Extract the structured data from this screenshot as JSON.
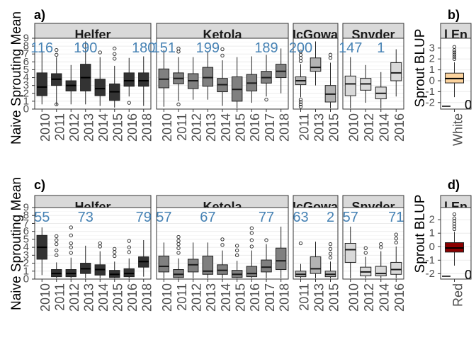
{
  "chart_data": [
    {
      "type": "boxplot",
      "panel_label": "a)",
      "ylabel": "Naive Sprouting Mean",
      "yticks": [
        0,
        1,
        2,
        3,
        4,
        5,
        6,
        7,
        8,
        9
      ],
      "ylim": [
        0,
        9
      ],
      "fill": "#333333",
      "facets": [
        {
          "name": "Helfer",
          "groups": [
            {
              "x": "2010",
              "min": 0.6,
              "q1": 1.7,
              "median": 2.8,
              "q3": 4.6,
              "max": 7.4,
              "outliers": [],
              "n": "116"
            },
            {
              "x": "2011",
              "min": 0.5,
              "q1": 3.0,
              "median": 3.8,
              "q3": 4.5,
              "max": 6.6,
              "outliers": [
                0.6,
                6.9,
                7.5
              ],
              "n": ""
            },
            {
              "x": "2012",
              "min": 0.6,
              "q1": 2.3,
              "median": 3.0,
              "q3": 3.6,
              "max": 5.6,
              "outliers": [],
              "n": ""
            },
            {
              "x": "2013",
              "min": 0.6,
              "q1": 2.3,
              "median": 4.0,
              "q3": 5.7,
              "max": 8.6,
              "outliers": [],
              "n": "190"
            },
            {
              "x": "2014",
              "min": 0.4,
              "q1": 1.7,
              "median": 2.6,
              "q3": 3.8,
              "max": 6.6,
              "outliers": [
                7.2
              ],
              "n": ""
            },
            {
              "x": "2015",
              "min": 0.2,
              "q1": 1.1,
              "median": 2.2,
              "q3": 3.2,
              "max": 5.5,
              "outliers": [
                6.4,
                7.0,
                7.7
              ],
              "n": ""
            },
            {
              "x": "2016",
              "min": 1.6,
              "q1": 2.9,
              "median": 3.6,
              "q3": 4.6,
              "max": 6.5,
              "outliers": [
                0.8
              ],
              "n": ""
            },
            {
              "x": "2018",
              "min": 0.4,
              "q1": 2.9,
              "median": 3.6,
              "q3": 4.6,
              "max": 6.7,
              "outliers": [],
              "n": "180"
            }
          ]
        },
        {
          "name": "Ketola",
          "groups": [
            {
              "x": "2010",
              "min": 0.3,
              "q1": 2.7,
              "median": 3.8,
              "q3": 5.1,
              "max": 7.5,
              "outliers": [],
              "n": "151"
            },
            {
              "x": "2011",
              "min": 1.0,
              "q1": 3.2,
              "median": 3.9,
              "q3": 4.6,
              "max": 6.6,
              "outliers": [
                0.6,
                7.3,
                7.7
              ],
              "n": ""
            },
            {
              "x": "2012",
              "min": 1.2,
              "q1": 2.6,
              "median": 3.6,
              "q3": 4.5,
              "max": 6.6,
              "outliers": [],
              "n": ""
            },
            {
              "x": "2013",
              "min": 1.2,
              "q1": 2.9,
              "median": 4.0,
              "q3": 5.3,
              "max": 7.3,
              "outliers": [],
              "n": "199"
            },
            {
              "x": "2014",
              "min": 0.4,
              "q1": 2.2,
              "median": 3.1,
              "q3": 3.9,
              "max": 6.2,
              "outliers": [
                6.8,
                7.6
              ],
              "n": ""
            },
            {
              "x": "2015",
              "min": 0.1,
              "q1": 1.0,
              "median": 2.5,
              "q3": 4.1,
              "max": 6.6,
              "outliers": [],
              "n": ""
            },
            {
              "x": "2016",
              "min": 0.8,
              "q1": 2.3,
              "median": 3.3,
              "q3": 4.4,
              "max": 6.7,
              "outliers": [],
              "n": ""
            },
            {
              "x": "2017",
              "min": 1.6,
              "q1": 3.3,
              "median": 4.0,
              "q3": 4.8,
              "max": 6.9,
              "outliers": [
                1.2
              ],
              "n": "189"
            },
            {
              "x": "2018",
              "min": 2.0,
              "q1": 4.0,
              "median": 4.8,
              "q3": 5.7,
              "max": 7.7,
              "outliers": [],
              "n": ""
            }
          ]
        },
        {
          "name": "McGowan",
          "groups": [
            {
              "x": "2011",
              "min": 1.5,
              "q1": 3.1,
              "median": 3.6,
              "q3": 4.1,
              "max": 5.7,
              "outliers": [
                0.3,
                0.6,
                0.9,
                1.2,
                6.1,
                6.5,
                6.9,
                7.3
              ],
              "n": "200"
            },
            {
              "x": "2013",
              "min": 3.0,
              "q1": 4.8,
              "median": 5.3,
              "q3": 6.5,
              "max": 8.6,
              "outliers": [],
              "n": ""
            },
            {
              "x": "2015",
              "min": 0.1,
              "q1": 0.9,
              "median": 1.9,
              "q3": 3.0,
              "max": 5.9,
              "outliers": [
                6.5,
                6.9
              ],
              "n": ""
            }
          ]
        },
        {
          "name": "Snyder",
          "groups": [
            {
              "x": "2010",
              "min": 0.1,
              "q1": 1.7,
              "median": 3.2,
              "q3": 4.2,
              "max": 6.6,
              "outliers": [],
              "n": "147"
            },
            {
              "x": "2012",
              "min": 0.8,
              "q1": 2.4,
              "median": 3.2,
              "q3": 3.9,
              "max": 5.6,
              "outliers": [],
              "n": ""
            },
            {
              "x": "2014",
              "min": 0.1,
              "q1": 1.3,
              "median": 2.0,
              "q3": 2.8,
              "max": 4.7,
              "outliers": [],
              "n": "1"
            },
            {
              "x": "2016",
              "min": 1.6,
              "q1": 3.6,
              "median": 4.6,
              "q3": 5.9,
              "max": 7.6,
              "outliers": [],
              "n": ""
            }
          ]
        }
      ]
    },
    {
      "type": "boxplot",
      "panel_label": "b)",
      "ylabel": "Sprout BLUP",
      "strip_label": "l En",
      "yticks": [
        -2,
        -1,
        0,
        1,
        2,
        3
      ],
      "ylim": [
        -2.6,
        3.9
      ],
      "fill": "#fdd49e",
      "outlier_annotation": "0",
      "groups": [
        {
          "x": "White",
          "min": -1.5,
          "q1": -0.2,
          "median": 0.2,
          "q3": 0.7,
          "max": 1.7,
          "outliers": [
            2.0,
            2.2,
            2.4,
            2.6,
            2.8,
            3.1
          ]
        }
      ]
    },
    {
      "type": "boxplot",
      "panel_label": "c)",
      "ylabel": "Naive Sprouting Mean",
      "yticks": [
        0,
        1,
        2,
        3,
        4,
        5,
        6,
        7,
        8,
        9
      ],
      "ylim": [
        0,
        9
      ],
      "fill": "#333333",
      "facets": [
        {
          "name": "Helfer",
          "groups": [
            {
              "x": "2010",
              "min": 0.5,
              "q1": 2.5,
              "median": 4.0,
              "q3": 5.5,
              "max": 6.5,
              "outliers": [],
              "n": "55"
            },
            {
              "x": "2011",
              "min": 0.1,
              "q1": 0.3,
              "median": 0.7,
              "q3": 1.2,
              "max": 2.1,
              "outliers": [
                3.0,
                3.6,
                4.4,
                4.9,
                5.4
              ],
              "n": ""
            },
            {
              "x": "2012",
              "min": 0.1,
              "q1": 0.3,
              "median": 0.7,
              "q3": 1.2,
              "max": 2.7,
              "outliers": [
                3.3,
                4.0,
                4.5,
                5.5,
                6.5
              ],
              "n": ""
            },
            {
              "x": "2013",
              "min": 0.1,
              "q1": 0.7,
              "median": 1.3,
              "q3": 2.0,
              "max": 4.2,
              "outliers": [],
              "n": "73"
            },
            {
              "x": "2014",
              "min": 0.1,
              "q1": 0.5,
              "median": 1.2,
              "q3": 1.8,
              "max": 3.5,
              "outliers": [
                4.1,
                4.5
              ],
              "n": ""
            },
            {
              "x": "2015",
              "min": 0.1,
              "q1": 0.2,
              "median": 0.6,
              "q3": 1.1,
              "max": 2.2,
              "outliers": [
                2.9,
                3.4,
                3.8
              ],
              "n": ""
            },
            {
              "x": "2016",
              "min": 0.1,
              "q1": 0.3,
              "median": 0.7,
              "q3": 1.3,
              "max": 2.6,
              "outliers": [
                3.4,
                4.0,
                4.8
              ],
              "n": ""
            },
            {
              "x": "2018",
              "min": 0.3,
              "q1": 1.5,
              "median": 2.2,
              "q3": 2.8,
              "max": 4.9,
              "outliers": [],
              "n": "79"
            }
          ]
        },
        {
          "name": "Ketola",
          "groups": [
            {
              "x": "2010",
              "min": 0.1,
              "q1": 0.9,
              "median": 1.6,
              "q3": 2.9,
              "max": 4.6,
              "outliers": [],
              "n": "57"
            },
            {
              "x": "2011",
              "min": 0.1,
              "q1": 0.2,
              "median": 0.6,
              "q3": 1.2,
              "max": 2.6,
              "outliers": [
                3.3,
                3.9,
                4.4,
                4.8,
                5.3
              ],
              "n": ""
            },
            {
              "x": "2012",
              "min": 0.1,
              "q1": 0.9,
              "median": 1.8,
              "q3": 2.5,
              "max": 4.6,
              "outliers": [],
              "n": ""
            },
            {
              "x": "2013",
              "min": 0.1,
              "q1": 0.6,
              "median": 1.0,
              "q3": 2.9,
              "max": 4.6,
              "outliers": [],
              "n": "67"
            },
            {
              "x": "2014",
              "min": 0.1,
              "q1": 0.6,
              "median": 1.1,
              "q3": 1.8,
              "max": 3.6,
              "outliers": [
                4.3,
                5.0
              ],
              "n": ""
            },
            {
              "x": "2015",
              "min": 0.1,
              "q1": 0.2,
              "median": 0.6,
              "q3": 1.1,
              "max": 2.3,
              "outliers": [
                3.0,
                3.6,
                4.2
              ],
              "n": ""
            },
            {
              "x": "2016",
              "min": 0.1,
              "q1": 0.3,
              "median": 0.7,
              "q3": 1.6,
              "max": 3.6,
              "outliers": [
                4.1,
                4.9,
                5.8,
                6.4
              ],
              "n": ""
            },
            {
              "x": "2017",
              "min": 0.1,
              "q1": 0.9,
              "median": 1.5,
              "q3": 2.4,
              "max": 4.4,
              "outliers": [
                4.9
              ],
              "n": "77"
            },
            {
              "x": "2018",
              "min": 0.1,
              "q1": 1.2,
              "median": 2.3,
              "q3": 3.9,
              "max": 6.6,
              "outliers": [],
              "n": ""
            }
          ]
        },
        {
          "name": "McGowan",
          "groups": [
            {
              "x": "2011",
              "min": 0.1,
              "q1": 0.3,
              "median": 0.6,
              "q3": 1.0,
              "max": 1.9,
              "outliers": [
                4.5
              ],
              "n": "63"
            },
            {
              "x": "2013",
              "min": 0.1,
              "q1": 0.7,
              "median": 1.3,
              "q3": 2.8,
              "max": 4.7,
              "outliers": [],
              "n": ""
            },
            {
              "x": "2015",
              "min": 0.1,
              "q1": 0.3,
              "median": 0.6,
              "q3": 1.0,
              "max": 2.2,
              "outliers": [
                2.7,
                3.2,
                3.8,
                4.4
              ],
              "n": "2"
            }
          ]
        },
        {
          "name": "Snyder",
          "groups": [
            {
              "x": "2010",
              "min": 0.1,
              "q1": 2.1,
              "median": 3.7,
              "q3": 4.5,
              "max": 6.6,
              "outliers": [],
              "n": "57"
            },
            {
              "x": "2012",
              "min": 0.1,
              "q1": 0.4,
              "median": 0.9,
              "q3": 1.5,
              "max": 2.8,
              "outliers": [
                3.3,
                3.9
              ],
              "n": ""
            },
            {
              "x": "2014",
              "min": 0.1,
              "q1": 0.4,
              "median": 0.7,
              "q3": 1.6,
              "max": 3.5,
              "outliers": [
                4.0,
                4.4
              ],
              "n": ""
            },
            {
              "x": "2016",
              "min": 0.1,
              "q1": 0.6,
              "median": 1.2,
              "q3": 2.1,
              "max": 4.1,
              "outliers": [
                4.6,
                5.1,
                5.6
              ],
              "n": "71"
            }
          ]
        }
      ]
    },
    {
      "type": "boxplot",
      "panel_label": "d)",
      "ylabel": "Sprout BLUP",
      "strip_label": "l En",
      "yticks": [
        -2,
        -1,
        0,
        1,
        2
      ],
      "ylim": [
        -2.4,
        2.9
      ],
      "fill": "#8b0000",
      "outlier_annotation": "0",
      "groups": [
        {
          "x": "Red",
          "min": -1.4,
          "q1": -0.4,
          "median": -0.1,
          "q3": 0.3,
          "max": 1.1,
          "outliers": [
            1.3,
            1.5,
            1.7,
            1.9,
            2.1,
            2.4
          ]
        }
      ]
    }
  ]
}
